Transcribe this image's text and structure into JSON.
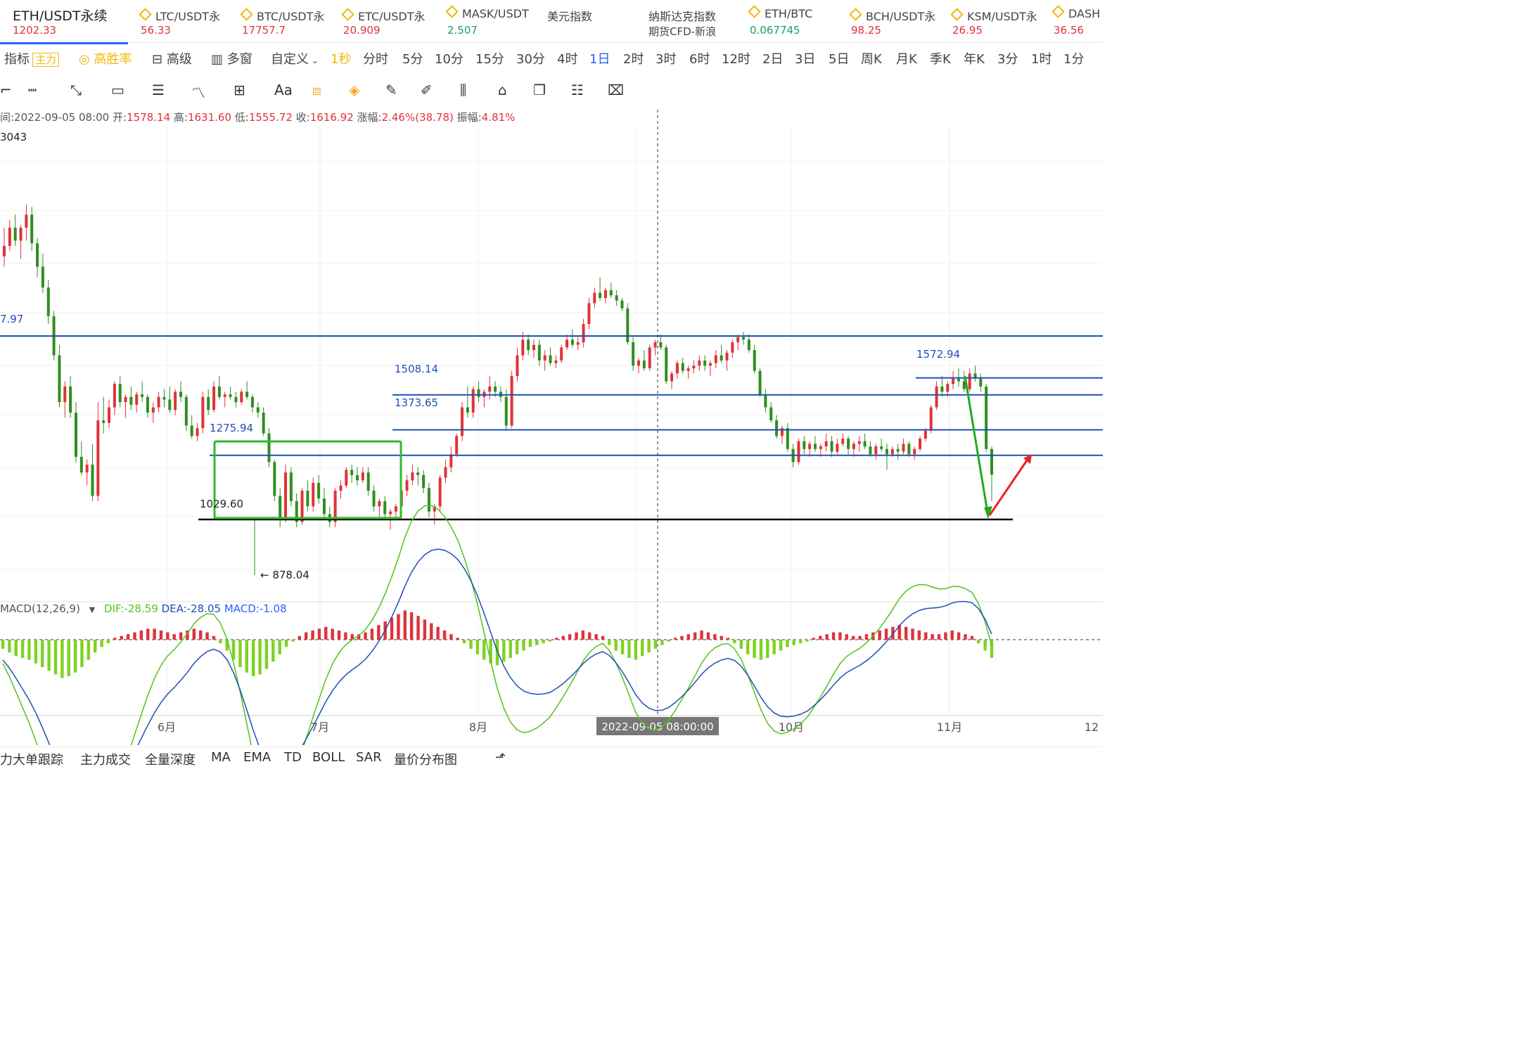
{
  "tickers": [
    {
      "name": "ETH/USDT永续",
      "price": "1202.33",
      "color": "#e0323a",
      "active": true
    },
    {
      "name": "LTC/USDT永",
      "price": "56.33",
      "color": "#e0323a"
    },
    {
      "name": "BTC/USDT永",
      "price": "17757.7",
      "color": "#e0323a"
    },
    {
      "name": "ETC/USDT永",
      "price": "20.909",
      "color": "#e0323a"
    },
    {
      "name": "MASK/USDT",
      "price": "2.507",
      "color": "#1aa15f"
    },
    {
      "name": "美元指数",
      "price": "",
      "color": "#e0323a"
    },
    {
      "name": "纳斯达克指数",
      "price": "期货CFD-新浪",
      "color": "#444"
    },
    {
      "name": "ETH/BTC",
      "price": "0.067745",
      "color": "#1aa15f"
    },
    {
      "name": "BCH/USDT永",
      "price": "98.25",
      "color": "#e0323a"
    },
    {
      "name": "KSM/USDT永",
      "price": "26.95",
      "color": "#e0323a"
    },
    {
      "name": "DASH",
      "price": "36.56",
      "color": "#e0323a"
    }
  ],
  "tabs": {
    "indicator": "指标",
    "main": "主力",
    "winrate": "高胜率",
    "advanced": "高级",
    "multi": "多窗",
    "custom": "自定义",
    "periods": [
      "1秒",
      "分时",
      "5分",
      "10分",
      "15分",
      "30分",
      "4时",
      "1日",
      "2时",
      "3时",
      "6时",
      "12时",
      "2日",
      "3日",
      "5日",
      "周K",
      "月K",
      "季K",
      "年K",
      "3分",
      "1时",
      "1分"
    ],
    "active_period": "1日"
  },
  "toolbar_icons": [
    "cursor-icon",
    "horizontal-line-icon",
    "trend-line-icon",
    "rectangle-icon",
    "parallel-icon",
    "wave-icon",
    "measure-icon",
    "text-icon",
    "fib-icon",
    "magnet-icon",
    "ruler-icon",
    "pencil-icon",
    "ab-icon",
    "pin-icon",
    "copy-icon",
    "note-icon",
    "trash-icon"
  ],
  "text_tool": "Aa",
  "info": {
    "time": "间:2022-09-05 08:00",
    "open_label": "开:",
    "open": "1578.14",
    "high_label": "高:",
    "high": "1631.60",
    "low_label": "低:",
    "low": "1555.72",
    "close_label": "收:",
    "close": "1616.92",
    "change_label": "涨幅:",
    "change": "2.46%(38.78)",
    "amp_label": "振幅:",
    "amp": "4.81%"
  },
  "macd": {
    "label": "MACD(12,26,9)",
    "dif": "DIF:-28.59",
    "dea": "DEA:-28.05",
    "macd": "MACD:-1.08",
    "dif_color": "#52c41a",
    "dea_color": "#1f4fb4",
    "macd_color": "#2962ff"
  },
  "bottom_tabs": [
    "力大单跟踪",
    "主力成交",
    "全量深度",
    "MA",
    "EMA",
    "TD",
    "BOLL",
    "SAR",
    "量价分布图"
  ],
  "chart_data": {
    "type": "candlestick",
    "price_labels": [
      "3043",
      "7.97",
      "1275.94",
      "1508.14",
      "1373.65",
      "1029.60",
      "878.04",
      "1572.94"
    ],
    "x_labels": [
      "6月",
      "7月",
      "8月",
      "10月",
      "11月",
      "12"
    ],
    "crosshair_label": "2022-09-05 08:00:00",
    "horizontal_levels": [
      1734.0,
      1508.14,
      1373.65,
      1275.94,
      1572.94
    ],
    "support_level": 1002.0,
    "colors": {
      "up": "#e0323a",
      "down": "#2d8f1e",
      "level": "#1f4fb4",
      "box": "#2dbb2d",
      "support": "#000000",
      "arrow_down": "#22aa22",
      "arrow_up": "#ee2222"
    },
    "candles_ohlc": [
      [
        2040,
        2150,
        2000,
        2080
      ],
      [
        2080,
        2180,
        2060,
        2150
      ],
      [
        2150,
        2200,
        2080,
        2100
      ],
      [
        2100,
        2160,
        2030,
        2150
      ],
      [
        2150,
        2240,
        2100,
        2200
      ],
      [
        2200,
        2230,
        2060,
        2090
      ],
      [
        2090,
        2110,
        1960,
        2000
      ],
      [
        2000,
        2050,
        1900,
        1920
      ],
      [
        1920,
        1950,
        1780,
        1810
      ],
      [
        1810,
        1830,
        1640,
        1660
      ],
      [
        1660,
        1700,
        1460,
        1480
      ],
      [
        1480,
        1560,
        1420,
        1540
      ],
      [
        1540,
        1580,
        1420,
        1440
      ],
      [
        1440,
        1480,
        1250,
        1270
      ],
      [
        1270,
        1330,
        1200,
        1210
      ],
      [
        1210,
        1260,
        1160,
        1240
      ],
      [
        1240,
        1320,
        1100,
        1120
      ],
      [
        1120,
        1480,
        1100,
        1410
      ],
      [
        1410,
        1500,
        1360,
        1400
      ],
      [
        1400,
        1490,
        1380,
        1460
      ],
      [
        1460,
        1560,
        1430,
        1550
      ],
      [
        1550,
        1580,
        1460,
        1480
      ],
      [
        1480,
        1510,
        1420,
        1500
      ],
      [
        1500,
        1540,
        1450,
        1470
      ],
      [
        1470,
        1520,
        1440,
        1510
      ],
      [
        1510,
        1560,
        1480,
        1500
      ],
      [
        1500,
        1510,
        1420,
        1440
      ],
      [
        1440,
        1480,
        1400,
        1460
      ],
      [
        1460,
        1520,
        1440,
        1500
      ],
      [
        1500,
        1530,
        1460,
        1490
      ],
      [
        1490,
        1540,
        1440,
        1450
      ],
      [
        1450,
        1530,
        1430,
        1520
      ],
      [
        1520,
        1560,
        1480,
        1500
      ],
      [
        1500,
        1510,
        1370,
        1390
      ],
      [
        1390,
        1430,
        1340,
        1350
      ],
      [
        1350,
        1400,
        1330,
        1380
      ],
      [
        1380,
        1520,
        1360,
        1500
      ],
      [
        1500,
        1530,
        1430,
        1450
      ],
      [
        1450,
        1560,
        1440,
        1540
      ],
      [
        1540,
        1580,
        1490,
        1500
      ],
      [
        1500,
        1520,
        1460,
        1510
      ],
      [
        1510,
        1540,
        1490,
        1500
      ],
      [
        1500,
        1520,
        1460,
        1480
      ],
      [
        1480,
        1530,
        1470,
        1520
      ],
      [
        1520,
        1560,
        1490,
        1500
      ],
      [
        1500,
        1510,
        1440,
        1460
      ],
      [
        1460,
        1480,
        1420,
        1440
      ],
      [
        1440,
        1460,
        1350,
        1360
      ],
      [
        1360,
        1380,
        1230,
        1250
      ],
      [
        1250,
        1260,
        1100,
        1120
      ],
      [
        1120,
        1150,
        1000,
        1030
      ],
      [
        1030,
        1240,
        1020,
        1210
      ],
      [
        1210,
        1230,
        1080,
        1100
      ],
      [
        1100,
        1130,
        1000,
        1020
      ],
      [
        1020,
        1150,
        1010,
        1140
      ],
      [
        1140,
        1180,
        1060,
        1080
      ],
      [
        1080,
        1190,
        1060,
        1170
      ],
      [
        1170,
        1200,
        1090,
        1110
      ],
      [
        1110,
        1150,
        1030,
        1050
      ],
      [
        1050,
        1080,
        1000,
        1020
      ],
      [
        1020,
        1150,
        1000,
        1140
      ],
      [
        1140,
        1180,
        1110,
        1160
      ],
      [
        1160,
        1230,
        1150,
        1220
      ],
      [
        1220,
        1240,
        1170,
        1200
      ],
      [
        1200,
        1230,
        1160,
        1180
      ],
      [
        1180,
        1230,
        1170,
        1210
      ],
      [
        1210,
        1230,
        1120,
        1140
      ],
      [
        1140,
        1160,
        1060,
        1080
      ],
      [
        1080,
        1110,
        1040,
        1100
      ],
      [
        1100,
        1120,
        1030,
        1050
      ],
      [
        1050,
        1070,
        990,
        1060
      ],
      [
        1060,
        1090,
        1040,
        1080
      ],
      [
        1080,
        1160,
        1070,
        1140
      ],
      [
        1140,
        1200,
        1120,
        1180
      ],
      [
        1180,
        1240,
        1160,
        1210
      ],
      [
        1210,
        1230,
        1160,
        1200
      ],
      [
        1200,
        1220,
        1130,
        1150
      ],
      [
        1150,
        1170,
        1040,
        1060
      ],
      [
        1060,
        1090,
        1010,
        1080
      ],
      [
        1080,
        1200,
        1060,
        1190
      ],
      [
        1190,
        1260,
        1170,
        1230
      ],
      [
        1230,
        1310,
        1210,
        1280
      ],
      [
        1280,
        1360,
        1270,
        1350
      ],
      [
        1350,
        1480,
        1330,
        1460
      ],
      [
        1460,
        1540,
        1420,
        1440
      ],
      [
        1440,
        1540,
        1420,
        1530
      ],
      [
        1530,
        1560,
        1480,
        1500
      ],
      [
        1500,
        1530,
        1460,
        1520
      ],
      [
        1520,
        1580,
        1490,
        1540
      ],
      [
        1540,
        1560,
        1500,
        1520
      ],
      [
        1520,
        1540,
        1480,
        1500
      ],
      [
        1500,
        1530,
        1370,
        1390
      ],
      [
        1390,
        1600,
        1380,
        1580
      ],
      [
        1580,
        1690,
        1560,
        1660
      ],
      [
        1660,
        1750,
        1640,
        1720
      ],
      [
        1720,
        1740,
        1660,
        1680
      ],
      [
        1680,
        1720,
        1650,
        1700
      ],
      [
        1700,
        1720,
        1620,
        1640
      ],
      [
        1640,
        1680,
        1600,
        1660
      ],
      [
        1660,
        1690,
        1620,
        1630
      ],
      [
        1630,
        1660,
        1610,
        1640
      ],
      [
        1640,
        1700,
        1630,
        1690
      ],
      [
        1690,
        1740,
        1680,
        1720
      ],
      [
        1720,
        1760,
        1690,
        1700
      ],
      [
        1700,
        1730,
        1680,
        1710
      ],
      [
        1710,
        1800,
        1690,
        1780
      ],
      [
        1780,
        1880,
        1760,
        1860
      ],
      [
        1860,
        1920,
        1840,
        1900
      ],
      [
        1900,
        1960,
        1870,
        1880
      ],
      [
        1880,
        1920,
        1860,
        1910
      ],
      [
        1910,
        1940,
        1880,
        1890
      ],
      [
        1890,
        1910,
        1850,
        1870
      ],
      [
        1870,
        1880,
        1830,
        1840
      ],
      [
        1840,
        1860,
        1700,
        1710
      ],
      [
        1710,
        1730,
        1600,
        1620
      ],
      [
        1620,
        1650,
        1590,
        1640
      ],
      [
        1640,
        1680,
        1600,
        1610
      ],
      [
        1610,
        1700,
        1600,
        1690
      ],
      [
        1690,
        1720,
        1660,
        1710
      ],
      [
        1710,
        1740,
        1680,
        1690
      ],
      [
        1690,
        1700,
        1550,
        1560
      ],
      [
        1560,
        1600,
        1530,
        1590
      ],
      [
        1590,
        1640,
        1570,
        1630
      ],
      [
        1630,
        1650,
        1590,
        1600
      ],
      [
        1600,
        1620,
        1570,
        1610
      ],
      [
        1610,
        1640,
        1590,
        1620
      ],
      [
        1620,
        1660,
        1600,
        1640
      ],
      [
        1640,
        1660,
        1600,
        1620
      ],
      [
        1620,
        1640,
        1580,
        1630
      ],
      [
        1630,
        1680,
        1610,
        1660
      ],
      [
        1660,
        1700,
        1630,
        1640
      ],
      [
        1640,
        1680,
        1600,
        1670
      ],
      [
        1670,
        1720,
        1650,
        1710
      ],
      [
        1710,
        1740,
        1680,
        1730
      ],
      [
        1730,
        1750,
        1700,
        1720
      ],
      [
        1720,
        1740,
        1670,
        1680
      ],
      [
        1680,
        1700,
        1590,
        1600
      ],
      [
        1600,
        1610,
        1500,
        1510
      ],
      [
        1510,
        1530,
        1440,
        1460
      ],
      [
        1460,
        1480,
        1400,
        1410
      ],
      [
        1410,
        1430,
        1340,
        1350
      ],
      [
        1350,
        1390,
        1320,
        1380
      ],
      [
        1380,
        1400,
        1290,
        1300
      ],
      [
        1300,
        1320,
        1230,
        1250
      ],
      [
        1250,
        1340,
        1240,
        1330
      ],
      [
        1330,
        1350,
        1280,
        1300
      ],
      [
        1300,
        1330,
        1270,
        1320
      ],
      [
        1320,
        1350,
        1290,
        1300
      ],
      [
        1300,
        1320,
        1270,
        1310
      ],
      [
        1310,
        1360,
        1290,
        1330
      ],
      [
        1330,
        1350,
        1270,
        1290
      ],
      [
        1290,
        1340,
        1280,
        1320
      ],
      [
        1320,
        1360,
        1310,
        1340
      ],
      [
        1340,
        1350,
        1280,
        1300
      ],
      [
        1300,
        1330,
        1270,
        1320
      ],
      [
        1320,
        1350,
        1290,
        1330
      ],
      [
        1330,
        1360,
        1300,
        1310
      ],
      [
        1310,
        1330,
        1270,
        1280
      ],
      [
        1280,
        1320,
        1260,
        1310
      ],
      [
        1310,
        1340,
        1290,
        1300
      ],
      [
        1300,
        1320,
        1220,
        1280
      ],
      [
        1280,
        1310,
        1270,
        1300
      ],
      [
        1300,
        1320,
        1260,
        1290
      ],
      [
        1290,
        1340,
        1280,
        1320
      ],
      [
        1320,
        1330,
        1270,
        1280
      ],
      [
        1280,
        1310,
        1260,
        1300
      ],
      [
        1300,
        1350,
        1290,
        1340
      ],
      [
        1340,
        1380,
        1330,
        1370
      ],
      [
        1370,
        1470,
        1360,
        1460
      ],
      [
        1460,
        1560,
        1450,
        1540
      ],
      [
        1540,
        1580,
        1500,
        1520
      ],
      [
        1520,
        1560,
        1500,
        1550
      ],
      [
        1550,
        1600,
        1530,
        1570
      ],
      [
        1570,
        1610,
        1540,
        1560
      ],
      [
        1560,
        1600,
        1520,
        1530
      ],
      [
        1530,
        1610,
        1520,
        1590
      ],
      [
        1590,
        1620,
        1560,
        1570
      ],
      [
        1570,
        1590,
        1520,
        1540
      ],
      [
        1540,
        1550,
        1290,
        1300
      ],
      [
        1300,
        1310,
        1100,
        1202
      ]
    ],
    "macd_hist": [
      -10,
      -14,
      -18,
      -20,
      -22,
      -26,
      -30,
      -34,
      -38,
      -42,
      -40,
      -36,
      -30,
      -22,
      -14,
      -8,
      -4,
      2,
      4,
      6,
      8,
      10,
      12,
      12,
      10,
      8,
      6,
      8,
      10,
      12,
      10,
      8,
      4,
      -4,
      -12,
      -22,
      -30,
      -36,
      -40,
      -38,
      -32,
      -24,
      -16,
      -8,
      -2,
      4,
      8,
      10,
      12,
      14,
      12,
      10,
      8,
      6,
      6,
      8,
      12,
      16,
      20,
      24,
      28,
      32,
      30,
      26,
      22,
      18,
      14,
      10,
      6,
      2,
      -4,
      -10,
      -16,
      -22,
      -26,
      -28,
      -24,
      -20,
      -16,
      -12,
      -8,
      -6,
      -4,
      -2,
      2,
      4,
      6,
      8,
      10,
      8,
      6,
      4,
      -6,
      -12,
      -16,
      -20,
      -22,
      -18,
      -14,
      -10,
      -6,
      -2,
      2,
      4,
      6,
      8,
      10,
      8,
      6,
      4,
      2,
      -4,
      -10,
      -16,
      -20,
      -22,
      -20,
      -16,
      -12,
      -8,
      -6,
      -4,
      -2,
      2,
      4,
      6,
      8,
      8,
      6,
      4,
      4,
      6,
      8,
      10,
      12,
      14,
      16,
      14,
      12,
      10,
      8,
      6,
      6,
      8,
      10,
      8,
      6,
      4,
      -4,
      -12,
      -20
    ]
  }
}
